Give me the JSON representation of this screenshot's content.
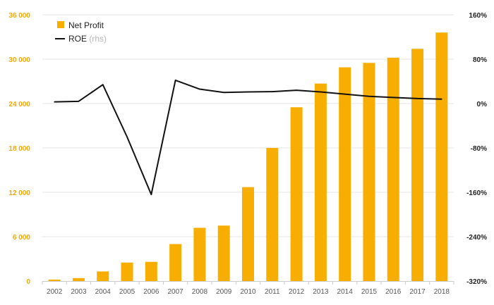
{
  "chart_data": {
    "type": "bar",
    "categories": [
      "2002",
      "2003",
      "2004",
      "2005",
      "2006",
      "2007",
      "2008",
      "2009",
      "2010",
      "2011",
      "2012",
      "2013",
      "2014",
      "2015",
      "2016",
      "2017",
      "2018"
    ],
    "series": [
      {
        "name": "Net Profit",
        "type": "bar",
        "axis": "left",
        "color": "#f7ae00",
        "values": [
          200,
          400,
          1300,
          2500,
          2600,
          5000,
          7200,
          7500,
          12700,
          18000,
          23500,
          26700,
          28900,
          29500,
          30200,
          31400,
          33600
        ]
      },
      {
        "name": "ROE",
        "name_suffix": "(rhs)",
        "type": "line",
        "axis": "right",
        "color": "#111111",
        "values": [
          3,
          4,
          34,
          -60,
          -164,
          42,
          26,
          20,
          21,
          21.5,
          24,
          21,
          17,
          13,
          11,
          9,
          8
        ]
      }
    ],
    "yaxis_left": {
      "ylim": [
        0,
        36000
      ],
      "ticks": [
        0,
        6000,
        12000,
        18000,
        24000,
        30000,
        36000
      ],
      "tick_labels": [
        "0",
        "6 000",
        "12 000",
        "18 000",
        "24 000",
        "30 000",
        "36 000"
      ],
      "color": "#f3a800"
    },
    "yaxis_right": {
      "ylim": [
        -320,
        160
      ],
      "ticks": [
        -320,
        -240,
        -160,
        -80,
        0,
        80,
        160
      ],
      "tick_labels": [
        "-320%",
        "-240%",
        "-160%",
        "-80%",
        "0%",
        "80%",
        "160%"
      ]
    },
    "title": "",
    "xlabel": "",
    "ylabel": "",
    "grid": true,
    "legend": {
      "position": "top-left",
      "items": [
        {
          "label": "Net Profit",
          "symbol": "square",
          "color": "#f7ae00"
        },
        {
          "label": "ROE",
          "suffix": "(rhs)",
          "symbol": "line",
          "color": "#111111"
        }
      ]
    }
  }
}
